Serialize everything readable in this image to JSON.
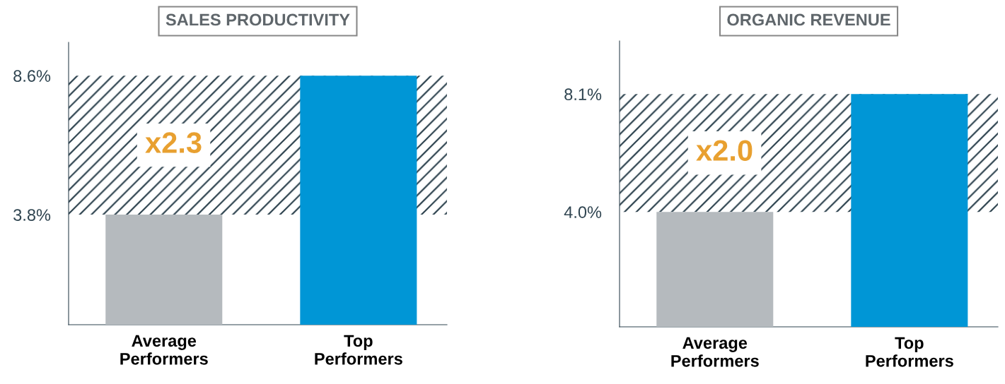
{
  "chart_data": [
    {
      "type": "bar",
      "title": "SALES PRODUCTIVITY",
      "categories": [
        "Average\nPerformers",
        "Top\nPerformers"
      ],
      "values": [
        3.8,
        8.6
      ],
      "colors": [
        "#b5babe",
        "#0096d6"
      ],
      "ylim": [
        0,
        9.75
      ],
      "yticks": [
        {
          "value": 3.8,
          "label": "3.8%"
        },
        {
          "value": 8.6,
          "label": "8.6%"
        }
      ],
      "bands": [
        {
          "axis": "y",
          "from": 3.8,
          "to": 8.6,
          "label": "x2.3",
          "color": "#2f4450"
        }
      ],
      "grid": false,
      "legend": false
    },
    {
      "type": "bar",
      "title": "ORGANIC REVENUE",
      "categories": [
        "Average\nPerformers",
        "Top\nPerformers"
      ],
      "values": [
        4.0,
        8.1
      ],
      "colors": [
        "#b5babe",
        "#0096d6"
      ],
      "ylim": [
        0,
        9.95
      ],
      "yticks": [
        {
          "value": 4.0,
          "label": "4.0%"
        },
        {
          "value": 8.1,
          "label": "8.1%"
        }
      ],
      "bands": [
        {
          "axis": "y",
          "from": 4.0,
          "to": 8.1,
          "label": "x2.0",
          "color": "#2f4450"
        }
      ],
      "grid": false,
      "legend": false
    }
  ]
}
